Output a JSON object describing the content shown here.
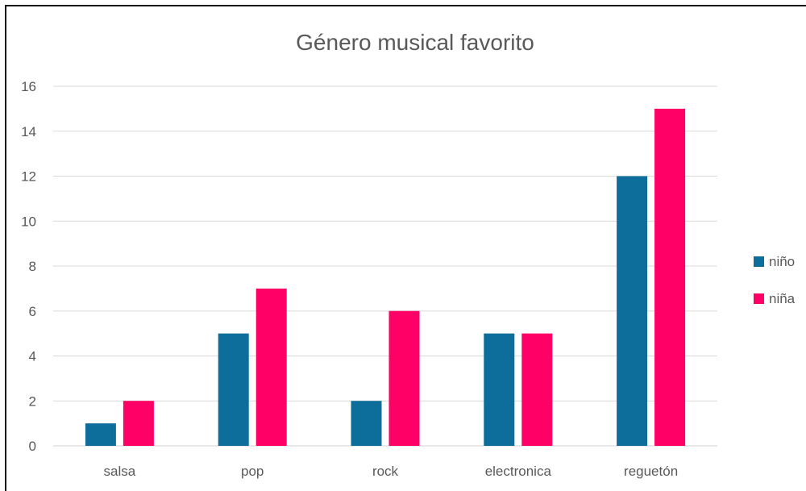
{
  "chart_data": {
    "type": "bar",
    "title": "Género musical favorito",
    "categories": [
      "salsa",
      "pop",
      "rock",
      "electronica",
      "reguetón"
    ],
    "series": [
      {
        "name": "niño",
        "color": "#0e6e9b",
        "values": [
          1,
          5,
          2,
          5,
          12
        ]
      },
      {
        "name": "niña",
        "color": "#ff0066",
        "values": [
          2,
          7,
          6,
          5,
          15
        ]
      }
    ],
    "xlabel": "",
    "ylabel": "",
    "ylim": [
      0,
      16
    ],
    "yticks": [
      0,
      2,
      4,
      6,
      8,
      10,
      12,
      14,
      16
    ],
    "grid": true,
    "legend_position": "right"
  }
}
